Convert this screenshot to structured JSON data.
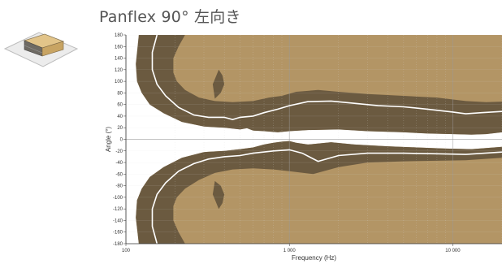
{
  "title": "Panflex  90° 左向き",
  "colors": {
    "background": "#ffffff",
    "inner_fill": "#b39565",
    "outer_band": "#6b5a40",
    "inner_pocket": "#7d6848",
    "contour_line": "#ffffff",
    "grid": "#d8d8d8",
    "major_grid": "#9a9a9a"
  },
  "icons": {
    "speaker": "speaker-box-icon"
  },
  "chart_data": {
    "type": "heatmap",
    "xlabel": "Frequency (Hz)",
    "ylabel": "Angle (°)",
    "x_scale": "log",
    "xlim": [
      100,
      20000
    ],
    "ylim": [
      -180,
      180
    ],
    "x_ticks": [
      {
        "value": 100,
        "label": "100"
      },
      {
        "value": 1000,
        "label": "1 000"
      },
      {
        "value": 10000,
        "label": "10 000"
      }
    ],
    "y_ticks": [
      {
        "value": 180,
        "label": "180"
      },
      {
        "value": 160,
        "label": "160"
      },
      {
        "value": 140,
        "label": "140"
      },
      {
        "value": 120,
        "label": "120"
      },
      {
        "value": 100,
        "label": "100"
      },
      {
        "value": 80,
        "label": "80"
      },
      {
        "value": 60,
        "label": "60"
      },
      {
        "value": 40,
        "label": "40"
      },
      {
        "value": 20,
        "label": "20"
      },
      {
        "value": 0,
        "label": "0"
      },
      {
        "value": -20,
        "label": "-20"
      },
      {
        "value": -40,
        "label": "-40"
      },
      {
        "value": -60,
        "label": "-60"
      },
      {
        "value": -80,
        "label": "-80"
      },
      {
        "value": -100,
        "label": "-100"
      },
      {
        "value": -120,
        "label": "-120"
      },
      {
        "value": -140,
        "label": "-140"
      },
      {
        "value": -160,
        "label": "-160"
      },
      {
        "value": -180,
        "label": "-180"
      }
    ],
    "grid": true,
    "regions": {
      "upper_outer_edge": [
        [
          120,
          180
        ],
        [
          115,
          130
        ],
        [
          117,
          100
        ],
        [
          125,
          80
        ],
        [
          140,
          60
        ],
        [
          170,
          45
        ],
        [
          220,
          30
        ],
        [
          300,
          22
        ],
        [
          400,
          20
        ],
        [
          500,
          17
        ],
        [
          550,
          19
        ],
        [
          600,
          15
        ],
        [
          700,
          14
        ],
        [
          850,
          12
        ],
        [
          1000,
          14
        ],
        [
          1300,
          16
        ],
        [
          2000,
          17
        ],
        [
          3000,
          14
        ],
        [
          5000,
          12
        ],
        [
          7000,
          10
        ],
        [
          10000,
          9
        ],
        [
          13000,
          8
        ],
        [
          16000,
          9
        ],
        [
          20000,
          12
        ]
      ],
      "upper_contour": [
        [
          155,
          180
        ],
        [
          145,
          150
        ],
        [
          145,
          120
        ],
        [
          155,
          95
        ],
        [
          175,
          75
        ],
        [
          210,
          55
        ],
        [
          260,
          42
        ],
        [
          320,
          38
        ],
        [
          400,
          38
        ],
        [
          450,
          34
        ],
        [
          500,
          38
        ],
        [
          600,
          40
        ],
        [
          700,
          46
        ],
        [
          850,
          52
        ],
        [
          1000,
          58
        ],
        [
          1300,
          65
        ],
        [
          1800,
          66
        ],
        [
          2500,
          62
        ],
        [
          3500,
          58
        ],
        [
          5000,
          56
        ],
        [
          7000,
          52
        ],
        [
          10000,
          47
        ],
        [
          12000,
          44
        ],
        [
          15000,
          46
        ],
        [
          20000,
          48
        ]
      ],
      "upper_inner_edge": [
        [
          230,
          180
        ],
        [
          210,
          160
        ],
        [
          195,
          140
        ],
        [
          195,
          115
        ],
        [
          205,
          100
        ],
        [
          230,
          85
        ],
        [
          280,
          72
        ],
        [
          350,
          66
        ],
        [
          450,
          64
        ],
        [
          600,
          66
        ],
        [
          750,
          72
        ],
        [
          900,
          75
        ],
        [
          1100,
          82
        ],
        [
          1500,
          85
        ],
        [
          2000,
          82
        ],
        [
          3000,
          78
        ],
        [
          5000,
          75
        ],
        [
          8000,
          72
        ],
        [
          12000,
          66
        ],
        [
          16000,
          64
        ],
        [
          20000,
          65
        ]
      ],
      "upper_pocket": [
        [
          350,
          70
        ],
        [
          380,
          80
        ],
        [
          400,
          95
        ],
        [
          390,
          110
        ],
        [
          370,
          120
        ],
        [
          340,
          95
        ]
      ],
      "lower_outer_edge": [
        [
          120,
          -180
        ],
        [
          115,
          -135
        ],
        [
          117,
          -105
        ],
        [
          125,
          -85
        ],
        [
          140,
          -65
        ],
        [
          170,
          -48
        ],
        [
          220,
          -32
        ],
        [
          300,
          -22
        ],
        [
          400,
          -20
        ],
        [
          500,
          -17
        ],
        [
          600,
          -14
        ],
        [
          700,
          -9
        ],
        [
          800,
          -6
        ],
        [
          900,
          -4
        ],
        [
          1000,
          -3
        ],
        [
          1100,
          -6
        ],
        [
          1300,
          -9
        ],
        [
          1800,
          -5
        ],
        [
          2500,
          -9
        ],
        [
          4000,
          -12
        ],
        [
          6000,
          -14
        ],
        [
          9000,
          -16
        ],
        [
          13000,
          -17
        ],
        [
          20000,
          -13
        ]
      ],
      "lower_contour": [
        [
          155,
          -180
        ],
        [
          145,
          -150
        ],
        [
          145,
          -120
        ],
        [
          155,
          -95
        ],
        [
          175,
          -75
        ],
        [
          210,
          -55
        ],
        [
          260,
          -42
        ],
        [
          320,
          -34
        ],
        [
          400,
          -30
        ],
        [
          500,
          -28
        ],
        [
          600,
          -24
        ],
        [
          800,
          -20
        ],
        [
          1000,
          -18
        ],
        [
          1200,
          -24
        ],
        [
          1500,
          -38
        ],
        [
          2000,
          -28
        ],
        [
          3000,
          -24
        ],
        [
          5000,
          -24
        ],
        [
          8000,
          -25
        ],
        [
          12000,
          -26
        ],
        [
          20000,
          -22
        ]
      ],
      "lower_inner_edge": [
        [
          230,
          -180
        ],
        [
          210,
          -160
        ],
        [
          195,
          -140
        ],
        [
          195,
          -115
        ],
        [
          205,
          -100
        ],
        [
          230,
          -85
        ],
        [
          280,
          -70
        ],
        [
          350,
          -58
        ],
        [
          450,
          -52
        ],
        [
          600,
          -50
        ],
        [
          800,
          -52
        ],
        [
          1000,
          -55
        ],
        [
          1400,
          -60
        ],
        [
          2000,
          -48
        ],
        [
          3000,
          -40
        ],
        [
          5000,
          -38
        ],
        [
          8000,
          -37
        ],
        [
          12000,
          -36
        ],
        [
          20000,
          -32
        ]
      ],
      "lower_pocket": [
        [
          350,
          -72
        ],
        [
          380,
          -80
        ],
        [
          400,
          -95
        ],
        [
          390,
          -110
        ],
        [
          370,
          -120
        ],
        [
          340,
          -95
        ]
      ]
    }
  }
}
